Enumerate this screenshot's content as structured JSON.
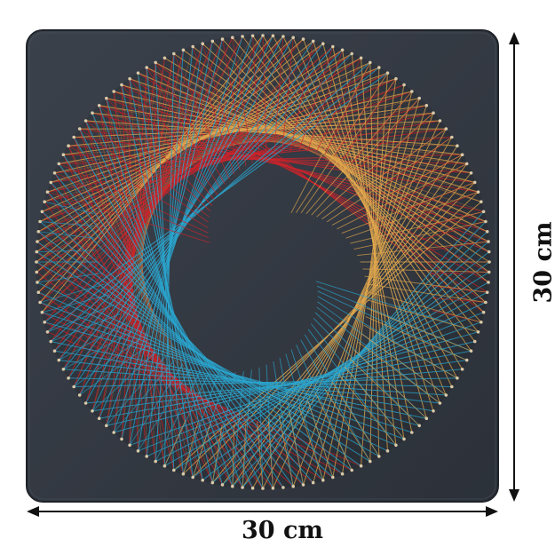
{
  "product": {
    "name": "string-art-yin-yang-panel",
    "width_label": "30 cm",
    "height_label": "30 cm"
  },
  "colors": {
    "background": "#ffffff",
    "board": "#353b44",
    "board_edge": "#1f2329",
    "red_thread": "#d0232a",
    "blue_thread": "#2aa6cf",
    "gold_thread": "#e2a84d",
    "copper_thread": "#b86a3e",
    "nail": "#d9c9a8",
    "arrow": "#111111"
  }
}
